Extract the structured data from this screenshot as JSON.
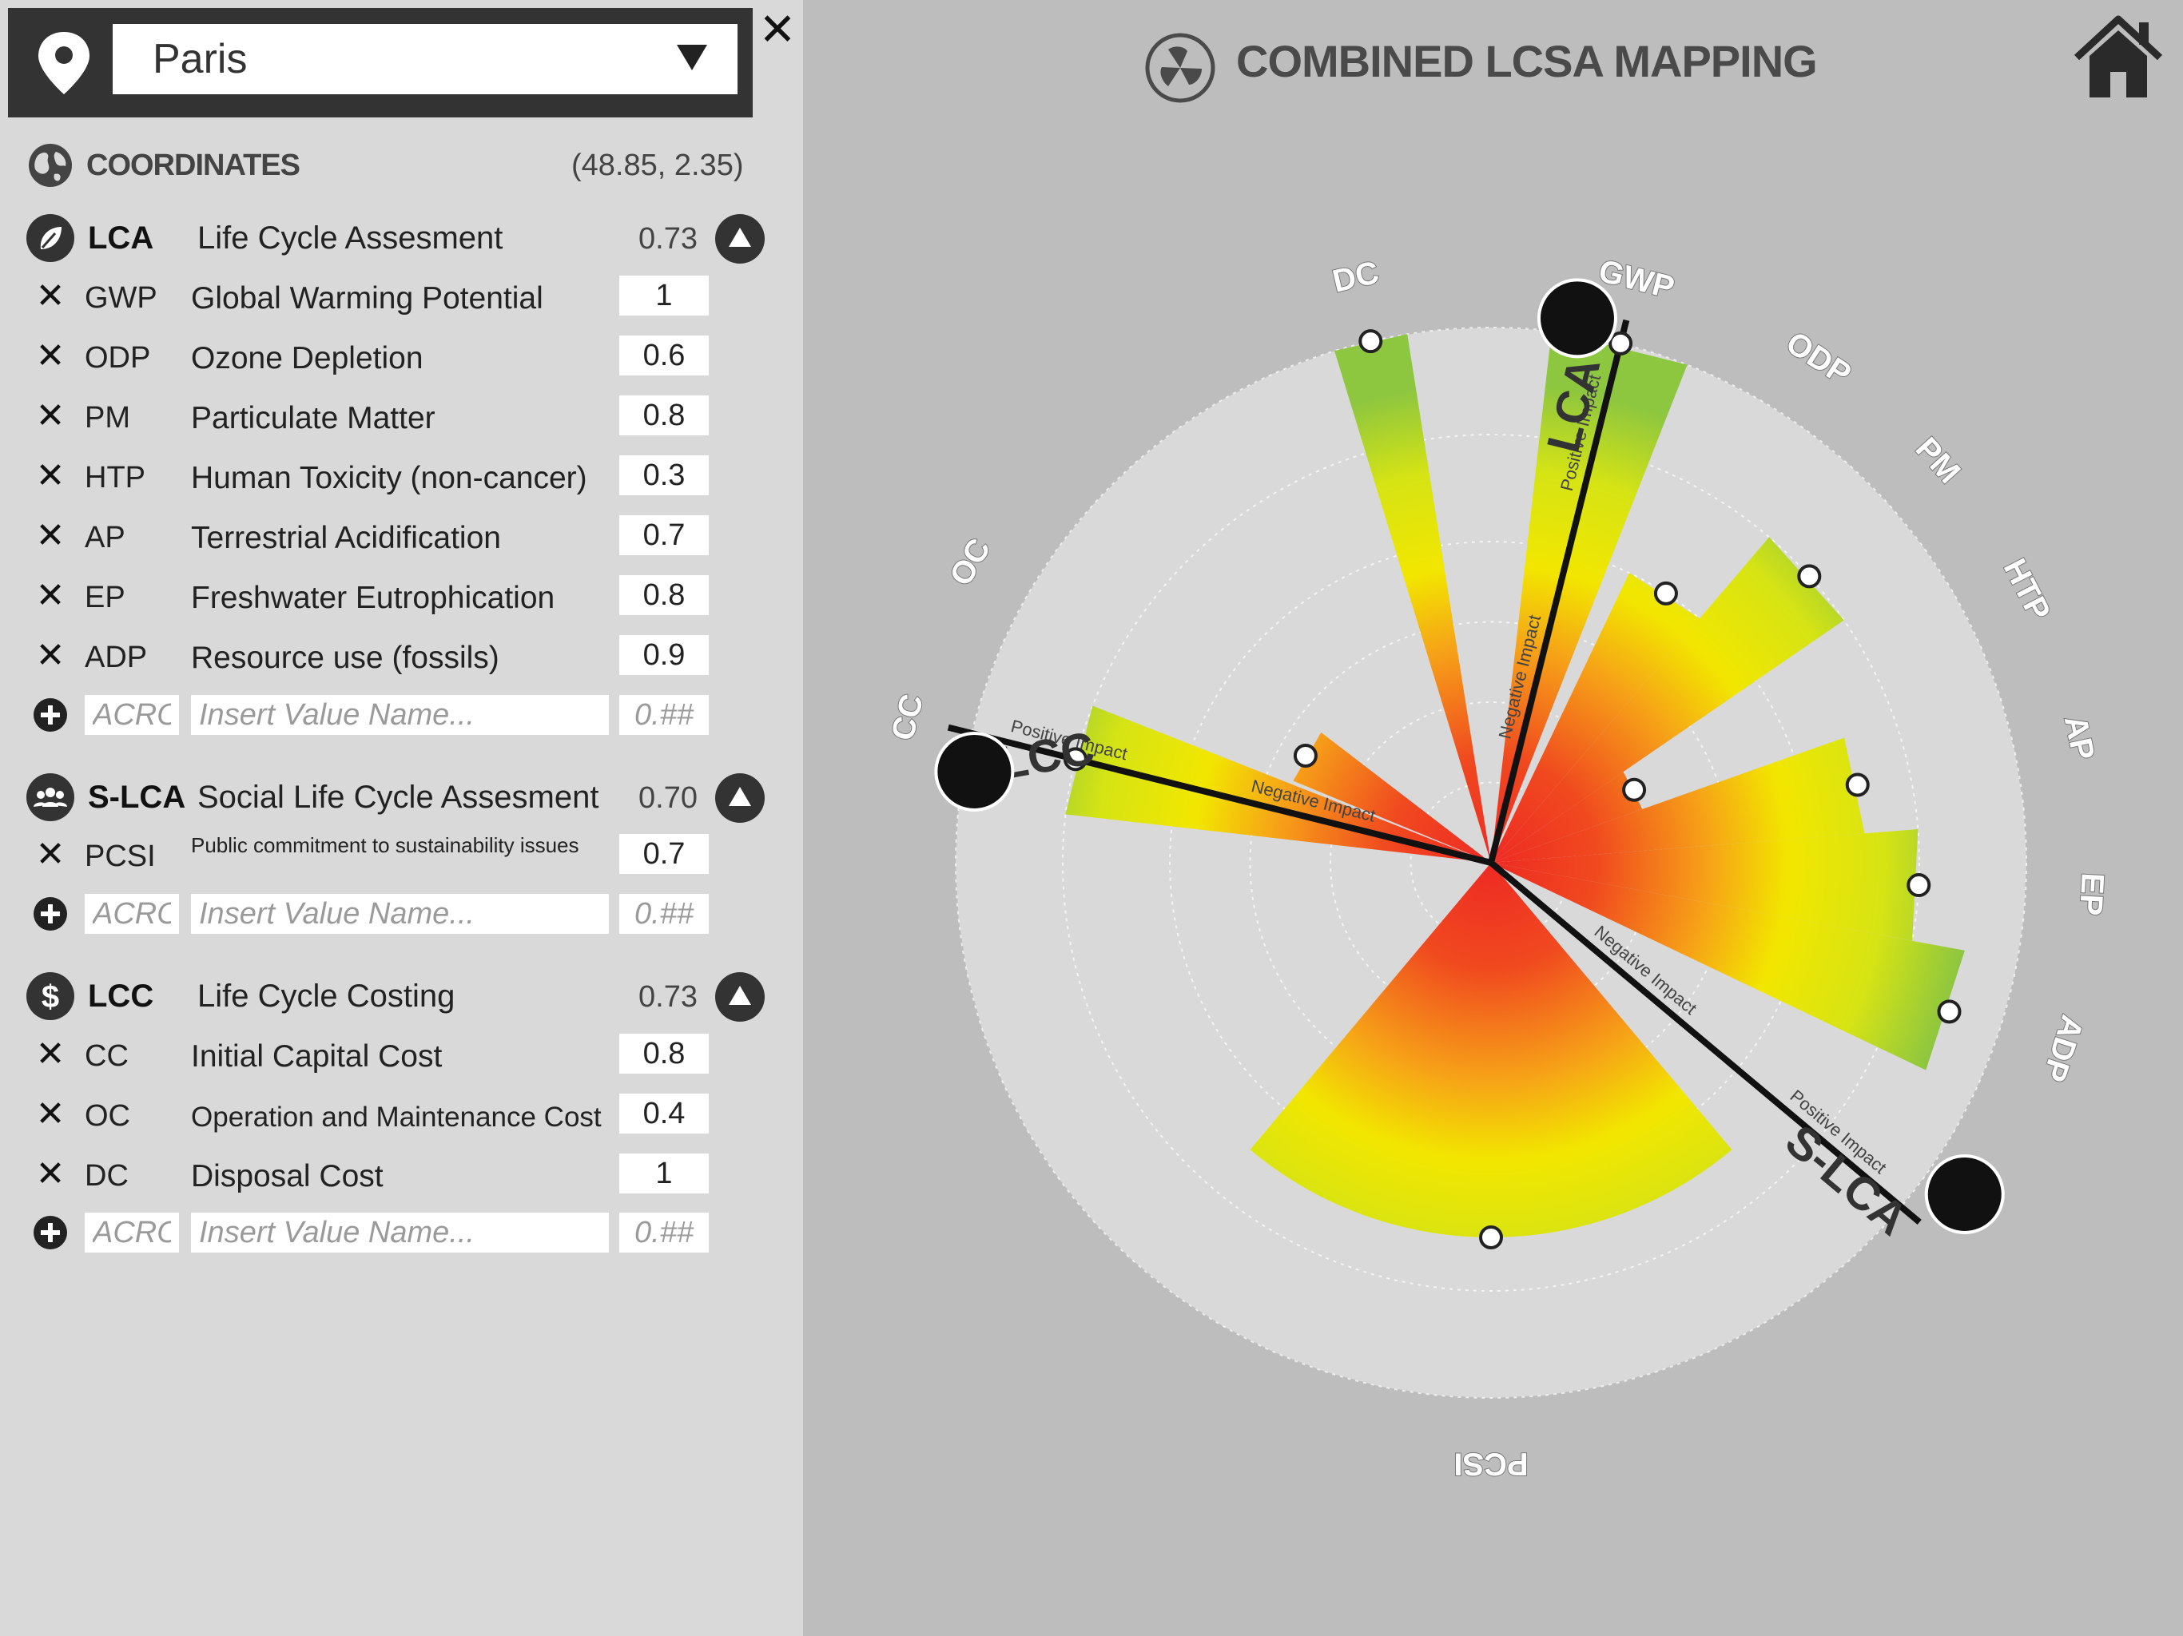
{
  "location": {
    "city": "Paris"
  },
  "coordinates": {
    "label": "COORDINATES",
    "value": "(48.85, 2.35)"
  },
  "sections": [
    {
      "acro": "LCA",
      "title": "Life Cycle Assesment",
      "score": "0.73",
      "items": [
        {
          "acro": "GWP",
          "name": "Global Warming Potential",
          "value": "1"
        },
        {
          "acro": "ODP",
          "name": "Ozone Depletion",
          "value": "0.6"
        },
        {
          "acro": "PM",
          "name": "Particulate Matter",
          "value": "0.8"
        },
        {
          "acro": "HTP",
          "name": "Human Toxicity (non-cancer)",
          "value": "0.3"
        },
        {
          "acro": "AP",
          "name": "Terrestrial Acidification",
          "value": "0.7"
        },
        {
          "acro": "EP",
          "name": "Freshwater Eutrophication",
          "value": "0.8"
        },
        {
          "acro": "ADP",
          "name": "Resource use (fossils)",
          "value": "0.9"
        }
      ]
    },
    {
      "acro": "S-LCA",
      "title": "Social Life Cycle Assesment",
      "score": "0.70",
      "items": [
        {
          "acro": "PCSI",
          "name": "Public commitment to sustainability issues",
          "value": "0.7"
        }
      ]
    },
    {
      "acro": "LCC",
      "title": "Life Cycle Costing",
      "score": "0.73",
      "items": [
        {
          "acro": "CC",
          "name": "Initial Capital Cost",
          "value": "0.8"
        },
        {
          "acro": "OC",
          "name": "Operation and Maintenance Cost",
          "value": "0.4"
        },
        {
          "acro": "DC",
          "name": "Disposal Cost",
          "value": "1"
        }
      ]
    }
  ],
  "new_item": {
    "acro_placeholder": "ACRO",
    "name_placeholder": "Insert Value Name...",
    "value_placeholder": "0.##"
  },
  "header": {
    "title": "COMBINED LCSA MAPPING"
  },
  "chart_labels": {
    "positive": "Positive Impact",
    "negative": "Negative Impact"
  },
  "colors": {
    "panel": "#d9d9d9",
    "background": "#bdbdbd",
    "dark": "#333333",
    "high": "#8dc63f",
    "mid": "#f2e600",
    "low": "#ee2a24"
  },
  "chart_data": {
    "type": "radar",
    "title": "COMBINED LCSA MAPPING",
    "groups": [
      {
        "name": "LCA",
        "indicators": [
          "GWP",
          "ODP",
          "PM",
          "HTP",
          "AP",
          "EP",
          "ADP"
        ],
        "values": [
          1,
          0.6,
          0.8,
          0.3,
          0.7,
          0.8,
          0.9
        ]
      },
      {
        "name": "S-LCA",
        "indicators": [
          "PCSI"
        ],
        "values": [
          0.7
        ]
      },
      {
        "name": "LCC",
        "indicators": [
          "CC",
          "OC",
          "DC"
        ],
        "values": [
          0.8,
          0.4,
          1
        ]
      }
    ],
    "range": [
      0,
      1
    ]
  }
}
